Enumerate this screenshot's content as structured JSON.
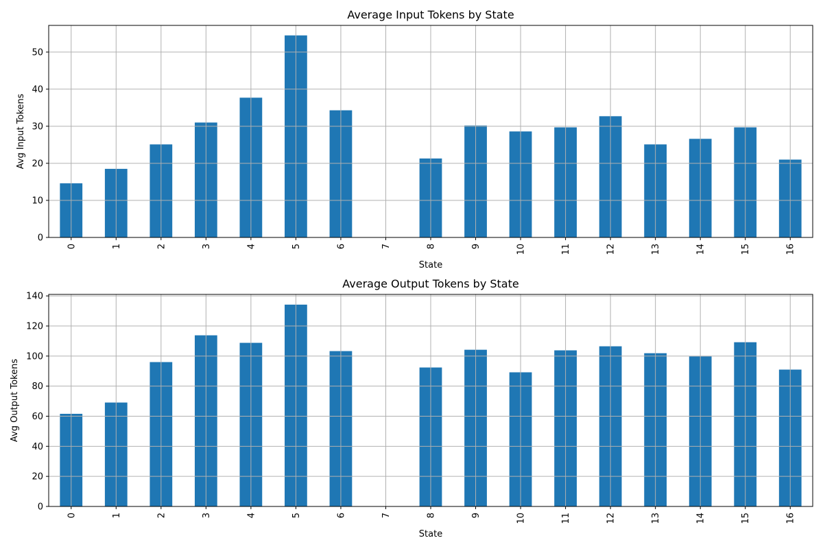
{
  "chart_data": [
    {
      "type": "bar",
      "title": "Average Input Tokens by State",
      "xlabel": "State",
      "ylabel": "Avg Input Tokens",
      "categories": [
        "0",
        "1",
        "2",
        "3",
        "4",
        "5",
        "6",
        "7",
        "8",
        "9",
        "10",
        "11",
        "12",
        "13",
        "14",
        "15",
        "16"
      ],
      "values": [
        14.6,
        18.5,
        25.1,
        31.0,
        37.7,
        54.5,
        34.3,
        0,
        21.3,
        30.2,
        28.6,
        29.7,
        32.7,
        25.1,
        26.6,
        29.7,
        21.0
      ],
      "ylim": [
        0,
        57.2
      ],
      "yticks": [
        0,
        10,
        20,
        30,
        40,
        50
      ],
      "grid": true,
      "bar_color": "#1f77b4"
    },
    {
      "type": "bar",
      "title": "Average Output Tokens by State",
      "xlabel": "State",
      "ylabel": "Avg Output Tokens",
      "categories": [
        "0",
        "1",
        "2",
        "3",
        "4",
        "5",
        "6",
        "7",
        "8",
        "9",
        "10",
        "11",
        "12",
        "13",
        "14",
        "15",
        "16"
      ],
      "values": [
        61.6,
        69.1,
        96.0,
        113.8,
        108.8,
        134.2,
        103.3,
        0,
        92.4,
        104.2,
        89.2,
        103.8,
        106.5,
        101.9,
        99.8,
        109.2,
        91.0
      ],
      "ylim": [
        0,
        141
      ],
      "yticks": [
        0,
        20,
        40,
        60,
        80,
        100,
        120,
        140
      ],
      "grid": true,
      "bar_color": "#1f77b4"
    }
  ]
}
